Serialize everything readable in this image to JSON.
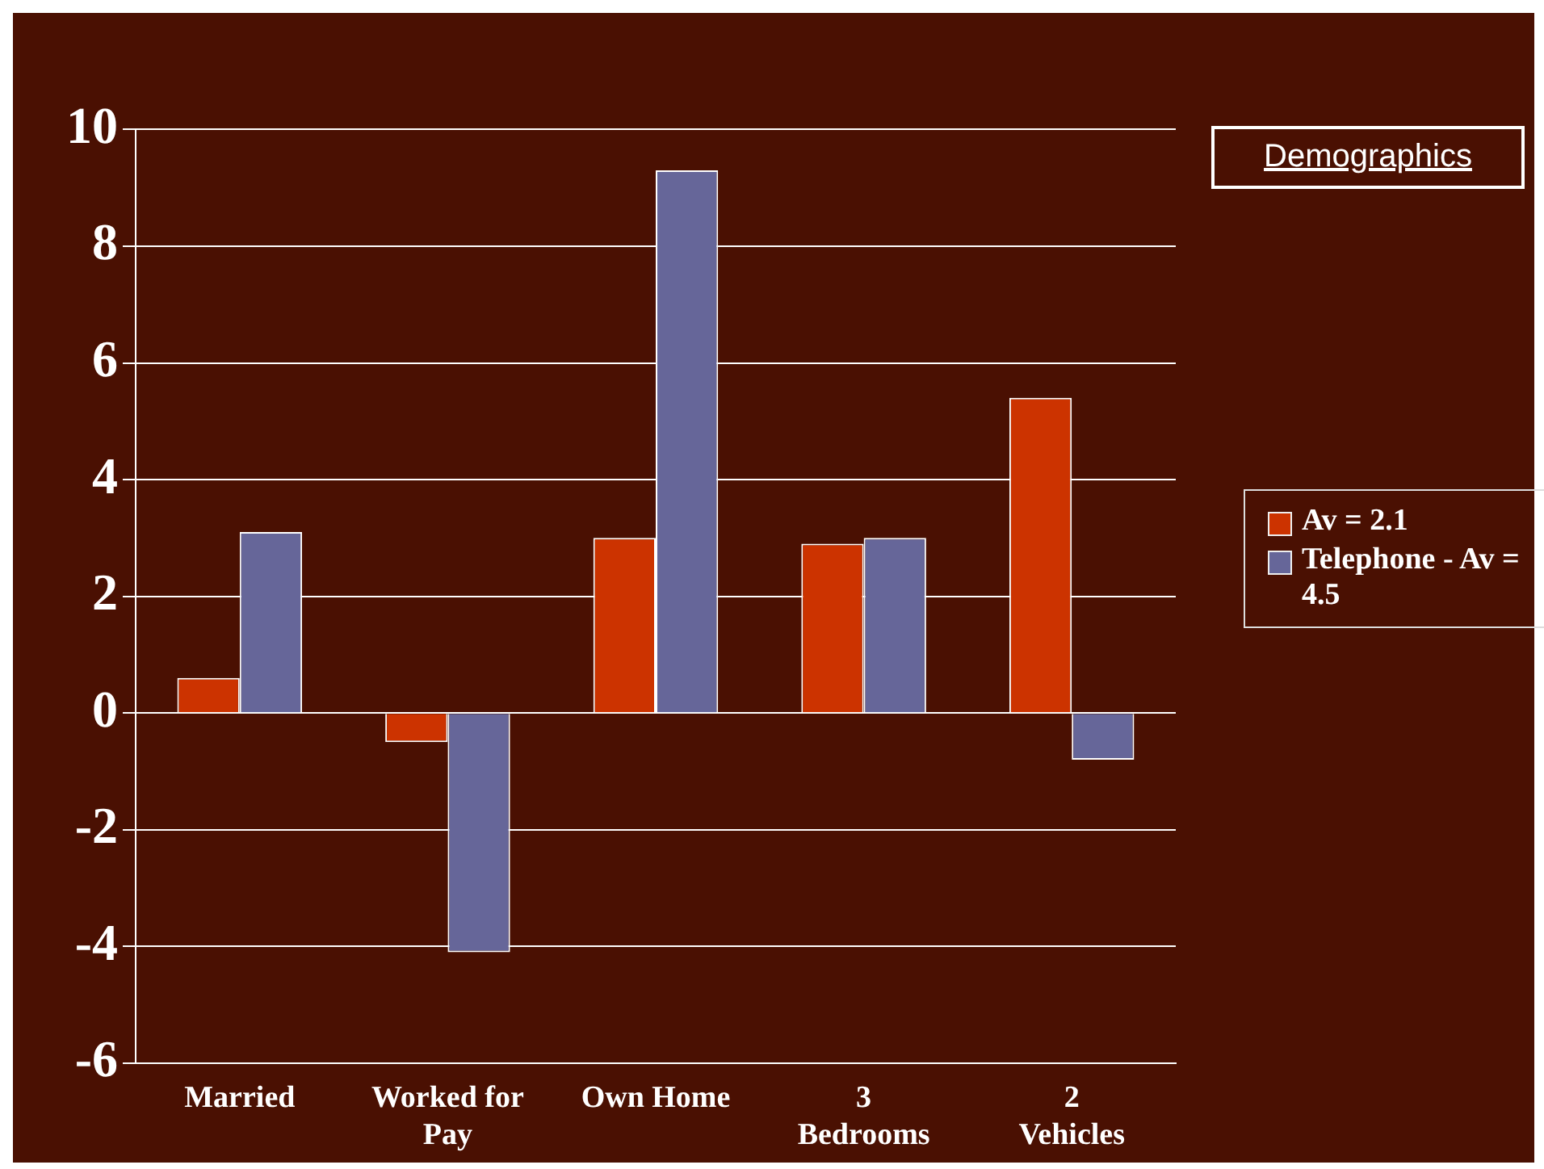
{
  "chart_data": {
    "type": "bar",
    "title": "Demographics",
    "categories": [
      "Married",
      "Worked for Pay",
      "Own Home",
      "3 Bedrooms",
      "2 Vehicles"
    ],
    "series": [
      {
        "name": "Av = 2.1",
        "color": "#cc3300",
        "values": [
          0.6,
          -0.5,
          3.0,
          2.9,
          5.4
        ]
      },
      {
        "name": "Telephone - Av = 4.5",
        "color": "#666699",
        "values": [
          3.1,
          -4.1,
          9.3,
          3.0,
          -0.8
        ]
      }
    ],
    "ylim": [
      -6,
      10
    ],
    "yticks": [
      -6,
      -4,
      -2,
      0,
      2,
      4,
      6,
      8,
      10
    ],
    "grid": "y",
    "legend": "right"
  }
}
